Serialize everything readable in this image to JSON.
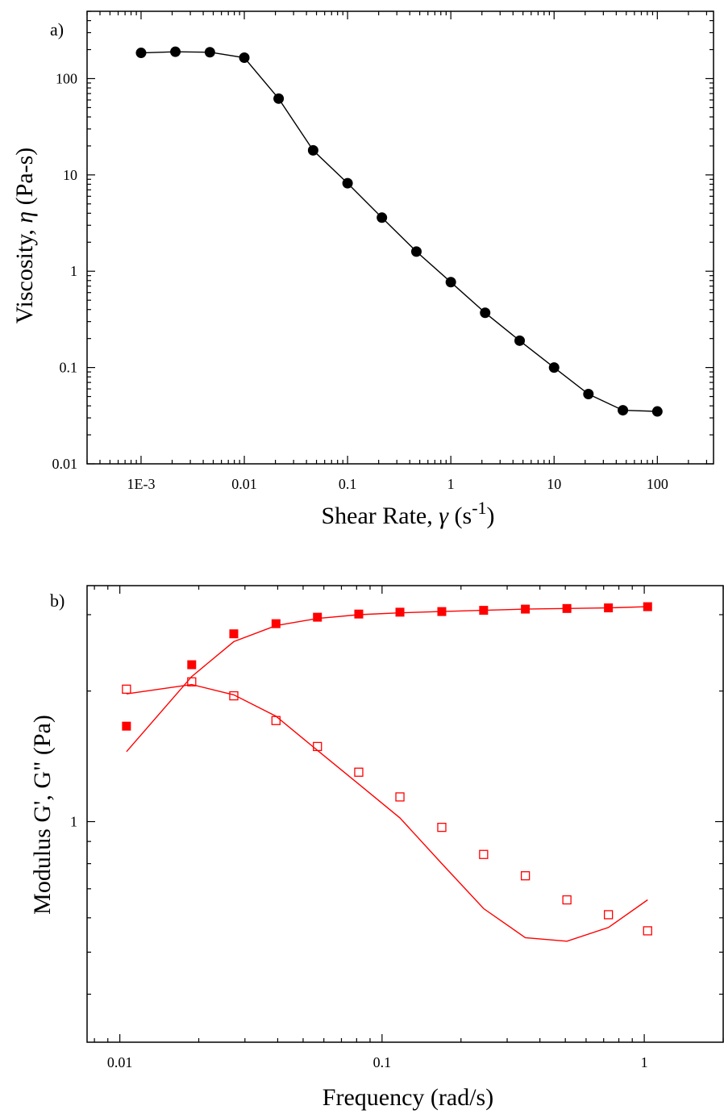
{
  "chart_data": [
    {
      "panel_label": "a)",
      "type": "line",
      "log_x": true,
      "log_y": true,
      "xlim": [
        0.0003,
        350
      ],
      "ylim": [
        0.01,
        500
      ],
      "xlabel": "Shear Rate, γ (s-1)",
      "xlabel_parts": {
        "main": "Shear Rate, ",
        "sym": "γ",
        "unit_open": " (s",
        "sup": "-1",
        "unit_close": ")"
      },
      "ylabel": "Viscosity, η (Pa-s)",
      "ylabel_parts": {
        "main": "Viscosity, ",
        "sym": "η",
        "unit": " (Pa-s)"
      },
      "x_ticks": [
        {
          "value": 0.001,
          "label": "1E-3"
        },
        {
          "value": 0.01,
          "label": "0.01"
        },
        {
          "value": 0.1,
          "label": "0.1"
        },
        {
          "value": 1,
          "label": "1"
        },
        {
          "value": 10,
          "label": "10"
        },
        {
          "value": 100,
          "label": "100"
        }
      ],
      "y_ticks": [
        {
          "value": 0.01,
          "label": "0.01"
        },
        {
          "value": 0.1,
          "label": "0.1"
        },
        {
          "value": 1,
          "label": "1"
        },
        {
          "value": 10,
          "label": "10"
        },
        {
          "value": 100,
          "label": "100"
        }
      ],
      "grid": false,
      "series": [
        {
          "marker": "filled-circle",
          "line": true,
          "color": "#000000",
          "x": [
            0.001,
            0.00215,
            0.00464,
            0.01,
            0.0215,
            0.0464,
            0.1,
            0.215,
            0.464,
            1,
            2.15,
            4.64,
            10,
            21.5,
            46.4,
            100
          ],
          "y": [
            185,
            190,
            188,
            165,
            62,
            18,
            8.2,
            3.6,
            1.6,
            0.77,
            0.37,
            0.19,
            0.1,
            0.053,
            0.036,
            0.035
          ]
        }
      ]
    },
    {
      "panel_label": "b)",
      "type": "scatter",
      "log_x": true,
      "log_y": true,
      "xlim": [
        0.0075,
        2.0
      ],
      "ylim": [
        0.31,
        3.5
      ],
      "xlabel": "Frequency (rad/s)",
      "ylabel": "Modulus G', G\" (Pa)",
      "x_ticks": [
        {
          "value": 0.01,
          "label": "0.01"
        },
        {
          "value": 0.1,
          "label": "0.1"
        },
        {
          "value": 1,
          "label": "1"
        }
      ],
      "y_ticks": [
        {
          "value": 1,
          "label": "1"
        }
      ],
      "grid": false,
      "series": [
        {
          "marker": "filled-square",
          "color": "#ff0000",
          "x": [
            0.0106,
            0.0188,
            0.0272,
            0.0394,
            0.0567,
            0.0815,
            0.117,
            0.169,
            0.244,
            0.352,
            0.507,
            0.73,
            1.03
          ],
          "y": [
            1.66,
            2.3,
            2.71,
            2.86,
            2.96,
            3.01,
            3.04,
            3.05,
            3.07,
            3.09,
            3.1,
            3.11,
            3.13
          ]
        },
        {
          "marker": "open-square",
          "color": "#ff0000",
          "x": [
            0.0106,
            0.0188,
            0.0272,
            0.0394,
            0.0567,
            0.0815,
            0.117,
            0.169,
            0.244,
            0.352,
            0.507,
            0.73,
            1.03
          ],
          "y": [
            2.02,
            2.1,
            1.95,
            1.71,
            1.49,
            1.3,
            1.14,
            0.97,
            0.84,
            0.75,
            0.66,
            0.61,
            0.56
          ]
        },
        {
          "marker": "none",
          "line": true,
          "color": "#ff0000",
          "x": [
            0.0106,
            0.0188,
            0.0272,
            0.0394,
            0.0567,
            0.0815,
            0.117,
            0.169,
            0.244,
            0.352,
            0.507,
            0.73,
            1.03
          ],
          "y": [
            1.45,
            2.16,
            2.6,
            2.83,
            2.94,
            3.0,
            3.03,
            3.05,
            3.07,
            3.09,
            3.1,
            3.11,
            3.13
          ]
        },
        {
          "marker": "none",
          "line": true,
          "color": "#ff0000",
          "x": [
            0.0106,
            0.0188,
            0.0272,
            0.0394,
            0.0567,
            0.0815,
            0.117,
            0.169,
            0.244,
            0.352,
            0.507,
            0.73,
            1.03
          ],
          "y": [
            1.97,
            2.07,
            1.96,
            1.75,
            1.46,
            1.22,
            1.02,
            0.8,
            0.63,
            0.54,
            0.53,
            0.57,
            0.66
          ]
        }
      ]
    }
  ]
}
